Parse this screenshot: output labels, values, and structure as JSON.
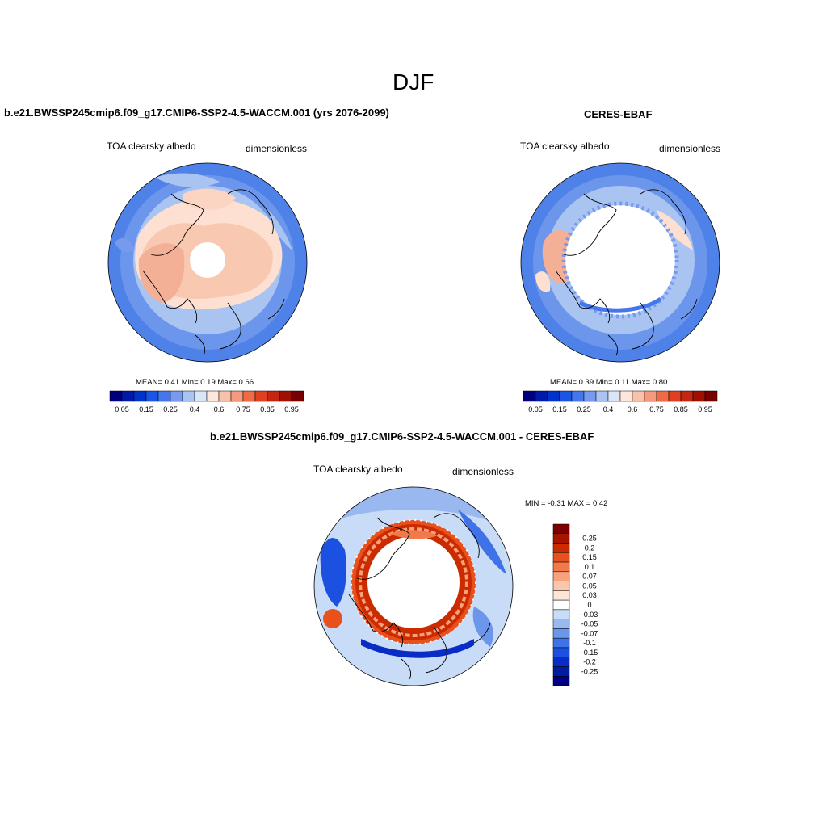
{
  "season": "DJF",
  "panels": {
    "model": {
      "title": "b.e21.BWSSP245cmip6.f09_g17.CMIP6-SSP2-4.5-WACCM.001 (yrs 2076-2099)",
      "variable": "TOA clearsky albedo",
      "units": "dimensionless",
      "stats": "MEAN=   0.41   Min=    0.19   Max=    0.66"
    },
    "obs": {
      "title": "CERES-EBAF",
      "variable": "TOA clearsky albedo",
      "units": "dimensionless",
      "stats": "MEAN=   0.39   Min=    0.11   Max=    0.80"
    },
    "diff": {
      "title": "b.e21.BWSSP245cmip6.f09_g17.CMIP6-SSP2-4.5-WACCM.001 - CERES-EBAF",
      "variable": "TOA clearsky albedo",
      "units": "dimensionless",
      "stats": "MIN =  -0.31 MAX =    0.42"
    }
  },
  "colorbar_abs": {
    "colors": [
      "#00007f",
      "#0019a8",
      "#0033cc",
      "#1a55e6",
      "#4477ee",
      "#7799ee",
      "#aac4f2",
      "#d8e6f8",
      "#fde6dc",
      "#f8c2aa",
      "#f59a7c",
      "#f06a46",
      "#e04020",
      "#c42612",
      "#a01000",
      "#780000"
    ],
    "labels": [
      "0.05",
      "0.15",
      "0.25",
      "0.4",
      "0.6",
      "0.75",
      "0.85",
      "0.95"
    ]
  },
  "colorbar_diff": {
    "colors": [
      "#7d0000",
      "#a41400",
      "#cc2a00",
      "#e8501c",
      "#f27a4a",
      "#f8a27c",
      "#fbc6aa",
      "#fde6d8",
      "#ffffff",
      "#c8dcf8",
      "#9ab8f0",
      "#6c96ea",
      "#3e72e6",
      "#1c50e0",
      "#0a2cc6",
      "#001ca0",
      "#000080"
    ],
    "labels": [
      "0.25",
      "0.2",
      "0.15",
      "0.1",
      "0.07",
      "0.05",
      "0.03",
      "0",
      "-0.03",
      "-0.05",
      "-0.07",
      "-0.1",
      "-0.15",
      "-0.2",
      "-0.25"
    ]
  }
}
